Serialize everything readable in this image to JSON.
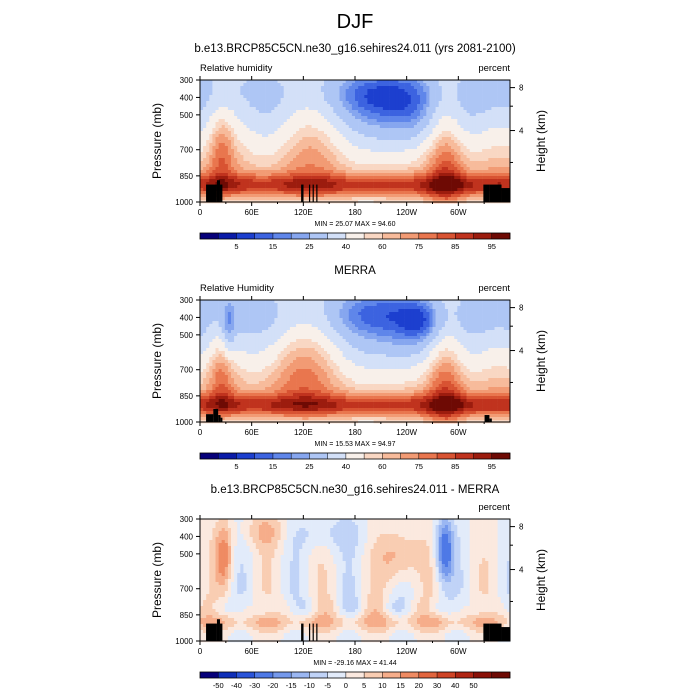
{
  "figure_title": "DJF",
  "colors": {
    "rh_palette": [
      "#06007a",
      "#0a1ba8",
      "#1c3fcf",
      "#3c63e0",
      "#5f86ea",
      "#86a6ef",
      "#aec6f5",
      "#d3e0f8",
      "#f8f0ea",
      "#f9d7c3",
      "#f7bb9b",
      "#f29b74",
      "#e9764e",
      "#d85332",
      "#c0331e",
      "#9c1c0e",
      "#6e0a04"
    ],
    "diff_palette": [
      "#06007a",
      "#0f2fb8",
      "#2a54d9",
      "#4e79e6",
      "#7599ec",
      "#9bb7f2",
      "#c0d3f7",
      "#e2ebfa",
      "#fbe9df",
      "#f9cdb2",
      "#f6ad8a",
      "#ef8b63",
      "#e2663f",
      "#cf4426",
      "#b02513",
      "#8a1007",
      "#6e0a04"
    ],
    "terrain": "#000000"
  },
  "chart_data": [
    {
      "type": "heatmap",
      "title": "b.e13.BRCP85C5CN.ne30_g16.sehires24.011 (yrs 2081-2100)",
      "left_label": "Relative humidity",
      "right_label": "percent",
      "ylabel": "Pressure (mb)",
      "ylabel_right": "Height (km)",
      "x_ticks": [
        "0",
        "60E",
        "120E",
        "180",
        "120W",
        "60W"
      ],
      "x_tick_lon": [
        0,
        60,
        120,
        180,
        240,
        300
      ],
      "y_ticks": [
        "300",
        "400",
        "500",
        "700",
        "850",
        "1000"
      ],
      "y_tick_p": [
        300,
        400,
        500,
        700,
        850,
        1000
      ],
      "height_ticks": [
        "8",
        "4"
      ],
      "height_tick_km": [
        8,
        4
      ],
      "stats": "MIN = 25.07  MAX = 94.60",
      "colorbar_labels": [
        "5",
        "15",
        "25",
        "40",
        "60",
        "75",
        "85",
        "95"
      ],
      "palette": "rh_palette",
      "mode": "model",
      "terrain": [
        [
          10,
          28,
          900
        ],
        [
          28,
          33,
          875
        ],
        [
          33,
          37,
          900
        ],
        [
          167,
          171,
          900
        ],
        [
          180,
          182,
          900
        ],
        [
          186,
          188,
          900
        ],
        [
          192,
          194,
          900
        ],
        [
          468,
          478,
          900
        ],
        [
          478,
          498,
          900
        ],
        [
          498,
          512,
          920
        ]
      ]
    },
    {
      "type": "heatmap",
      "title": "MERRA",
      "left_label": "Relative Humidity",
      "right_label": "percent",
      "ylabel": "Pressure (mb)",
      "ylabel_right": "Height (km)",
      "x_ticks": [
        "0",
        "60E",
        "120E",
        "180",
        "120W",
        "60W"
      ],
      "x_tick_lon": [
        0,
        60,
        120,
        180,
        240,
        300
      ],
      "y_ticks": [
        "300",
        "400",
        "500",
        "700",
        "850",
        "1000"
      ],
      "y_tick_p": [
        300,
        400,
        500,
        700,
        850,
        1000
      ],
      "height_ticks": [
        "8",
        "4"
      ],
      "height_tick_km": [
        8,
        4
      ],
      "stats": "MIN = 15.53  MAX = 94.97",
      "colorbar_labels": [
        "5",
        "15",
        "25",
        "40",
        "60",
        "75",
        "85",
        "95"
      ],
      "palette": "rh_palette",
      "mode": "merra",
      "terrain": [
        [
          10,
          22,
          955
        ],
        [
          22,
          30,
          925
        ],
        [
          30,
          34,
          960
        ],
        [
          34,
          37,
          975
        ],
        [
          470,
          478,
          960
        ],
        [
          478,
          482,
          980
        ]
      ]
    },
    {
      "type": "heatmap",
      "title": "b.e13.BRCP85C5CN.ne30_g16.sehires24.011 - MERRA",
      "left_label": "",
      "right_label": "percent",
      "ylabel": "Pressure (mb)",
      "ylabel_right": "Height (km)",
      "x_ticks": [
        "0",
        "60E",
        "120E",
        "180",
        "120W",
        "60W"
      ],
      "x_tick_lon": [
        0,
        60,
        120,
        180,
        240,
        300
      ],
      "y_ticks": [
        "300",
        "400",
        "500",
        "700",
        "850",
        "1000"
      ],
      "y_tick_p": [
        300,
        400,
        500,
        700,
        850,
        1000
      ],
      "height_ticks": [
        "8",
        "4"
      ],
      "height_tick_km": [
        8,
        4
      ],
      "stats": "MIN = -29.16  MAX = 41.44",
      "colorbar_labels": [
        "-50",
        "-40",
        "-30",
        "-20",
        "-15",
        "-10",
        "-5",
        "0",
        "5",
        "10",
        "15",
        "20",
        "30",
        "40",
        "50"
      ],
      "palette": "diff_palette",
      "mode": "diff",
      "terrain": [
        [
          10,
          28,
          900
        ],
        [
          28,
          33,
          875
        ],
        [
          33,
          37,
          900
        ],
        [
          167,
          171,
          900
        ],
        [
          180,
          182,
          900
        ],
        [
          186,
          188,
          900
        ],
        [
          192,
          194,
          900
        ],
        [
          468,
          478,
          900
        ],
        [
          478,
          498,
          900
        ],
        [
          498,
          512,
          920
        ]
      ]
    }
  ]
}
